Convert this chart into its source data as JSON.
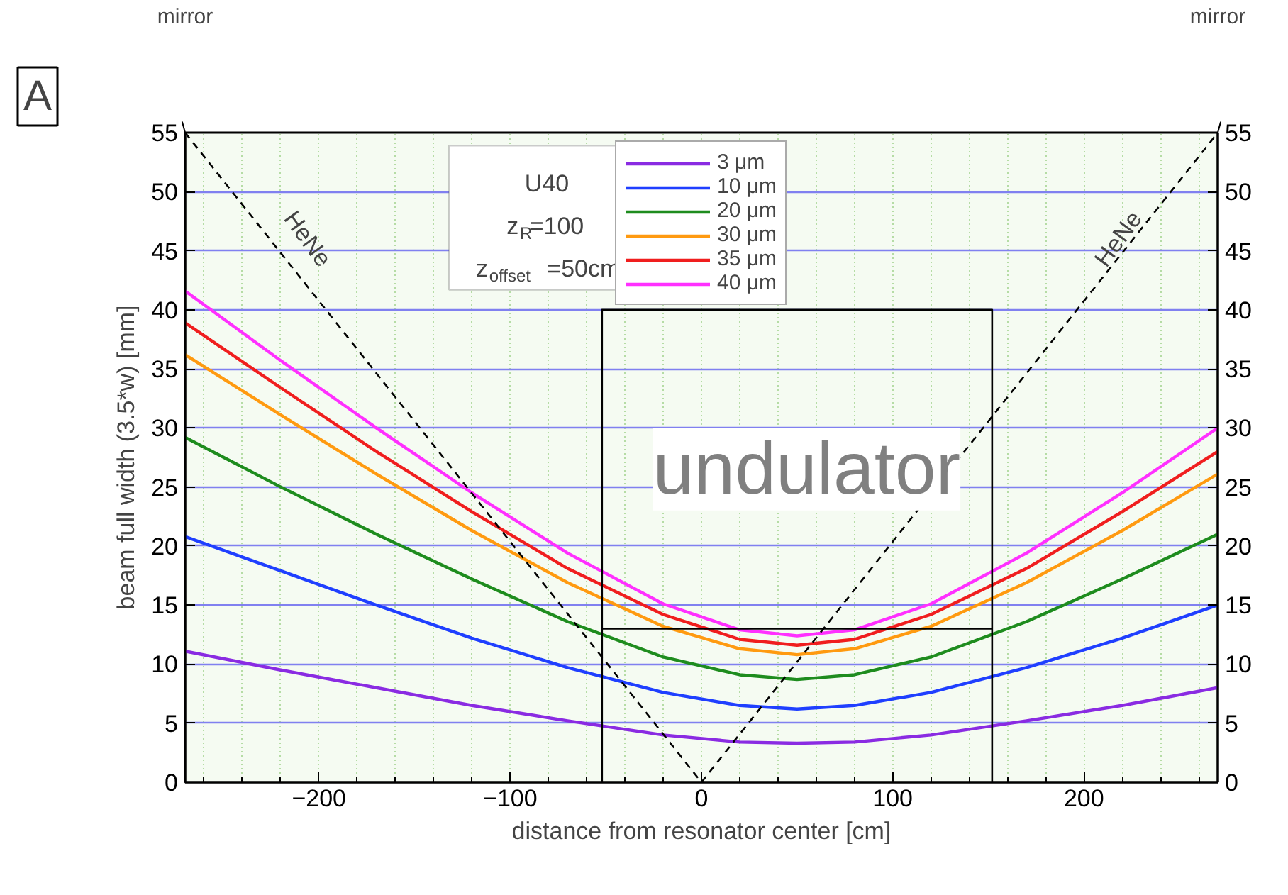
{
  "chart_data": {
    "type": "line",
    "xlabel": "distance from resonator center [cm]",
    "ylabel": "beam full width (3.5*w) [mm]",
    "x": [
      -270,
      -220,
      -170,
      -120,
      -70,
      -20,
      20,
      50,
      80,
      120,
      170,
      220,
      270
    ],
    "series": [
      {
        "name": "3 μm",
        "color": "#8a2be2",
        "values": [
          11.1,
          9.5,
          8.0,
          6.5,
          5.2,
          4.0,
          3.4,
          3.3,
          3.4,
          4.0,
          5.2,
          6.5,
          8.0
        ]
      },
      {
        "name": "10 μm",
        "color": "#1f3fff",
        "values": [
          20.8,
          17.9,
          15.0,
          12.2,
          9.7,
          7.6,
          6.5,
          6.2,
          6.5,
          7.6,
          9.7,
          12.2,
          15.0
        ]
      },
      {
        "name": "20 μm",
        "color": "#1e8c1e",
        "values": [
          29.2,
          25.0,
          21.0,
          17.2,
          13.6,
          10.6,
          9.1,
          8.7,
          9.1,
          10.6,
          13.6,
          17.2,
          21.0
        ]
      },
      {
        "name": "30 μm",
        "color": "#ff9a10",
        "values": [
          36.2,
          31.1,
          26.1,
          21.3,
          16.9,
          13.2,
          11.3,
          10.8,
          11.3,
          13.2,
          16.9,
          21.3,
          26.1
        ]
      },
      {
        "name": "35 μm",
        "color": "#f01e1e",
        "values": [
          38.9,
          33.4,
          28.0,
          22.9,
          18.1,
          14.2,
          12.1,
          11.6,
          12.1,
          14.2,
          18.1,
          22.9,
          28.0
        ]
      },
      {
        "name": "40 μm",
        "color": "#ff30ff",
        "values": [
          41.6,
          35.7,
          30.0,
          24.5,
          19.4,
          15.1,
          12.9,
          12.4,
          12.9,
          15.1,
          19.4,
          24.5,
          30.0
        ]
      },
      {
        "color": "#000000",
        "x": [
          -270,
          0,
          270
        ],
        "values": [
          55,
          0,
          55
        ],
        "line_style": "dashed"
      },
      {
        "color": "#000000",
        "x": [
          -52,
          -52,
          152,
          152
        ],
        "values": [
          0,
          40,
          40,
          0
        ]
      },
      {
        "color": "#000000",
        "x": [
          -52,
          152
        ],
        "values": [
          13,
          13
        ]
      }
    ],
    "xlim": [
      -270,
      270
    ],
    "xticks": [
      -200,
      -100,
      0,
      100,
      200
    ],
    "ylim": [
      0,
      55
    ],
    "yticks": [
      0,
      5,
      10,
      15,
      20,
      25,
      30,
      35,
      40,
      45,
      50,
      55
    ],
    "y2lim": [
      0,
      55
    ],
    "y2ticks": [
      0,
      5,
      10,
      15,
      20,
      25,
      30,
      35,
      40,
      45,
      50,
      55
    ],
    "grid": true,
    "legend": "top",
    "marker": "none",
    "line_style": "solid",
    "annotations": [
      "A",
      "U40",
      "z$_{R}$=100",
      "z$_{offset}$=50cm",
      "mirror",
      "mirror",
      "HeNe",
      "HeNe",
      "undulator"
    ]
  }
}
